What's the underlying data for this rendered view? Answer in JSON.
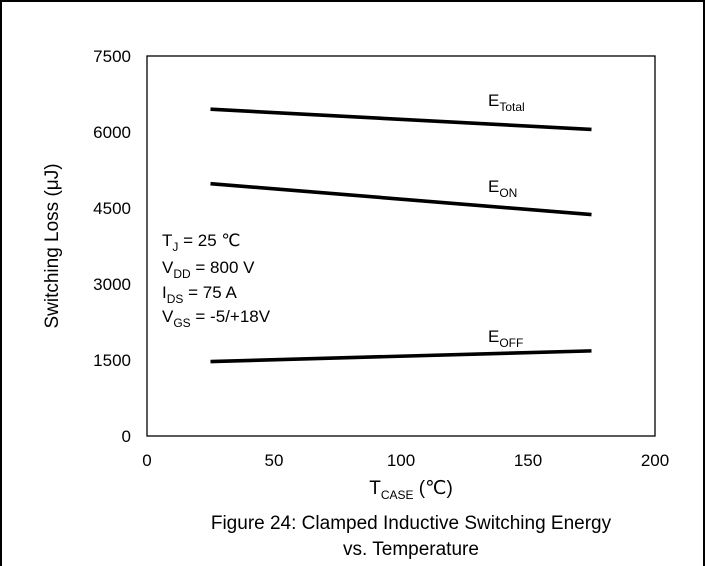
{
  "chart_data": {
    "type": "line",
    "title": "",
    "caption_line1": "Figure 24: Clamped Inductive Switching Energy",
    "caption_line2": "vs. Temperature",
    "xlabel": {
      "main": "T",
      "sub": "CASE",
      "unit": " (℃)"
    },
    "ylabel": "Switching Loss (μJ)",
    "xlim": [
      0,
      200
    ],
    "ylim": [
      0,
      7500
    ],
    "xticks": [
      0,
      50,
      100,
      150,
      200
    ],
    "yticks": [
      0,
      1500,
      3000,
      4500,
      6000,
      7500
    ],
    "grid": false,
    "series": [
      {
        "name": "E",
        "sub": "Total",
        "x": [
          25,
          175
        ],
        "y": [
          6450,
          6050
        ]
      },
      {
        "name": "E",
        "sub": "ON",
        "x": [
          25,
          175
        ],
        "y": [
          4980,
          4370
        ]
      },
      {
        "name": "E",
        "sub": "OFF",
        "x": [
          25,
          175
        ],
        "y": [
          1470,
          1680
        ]
      }
    ],
    "conditions": [
      {
        "main": "T",
        "sub": "J",
        "rest": " = 25 ℃"
      },
      {
        "main": "V",
        "sub": "DD",
        "rest": " = 800 V"
      },
      {
        "main": "I",
        "sub": "DS",
        "rest": " = 75 A"
      },
      {
        "main": "V",
        "sub": "GS",
        "rest": " = -5/+18V"
      }
    ]
  }
}
